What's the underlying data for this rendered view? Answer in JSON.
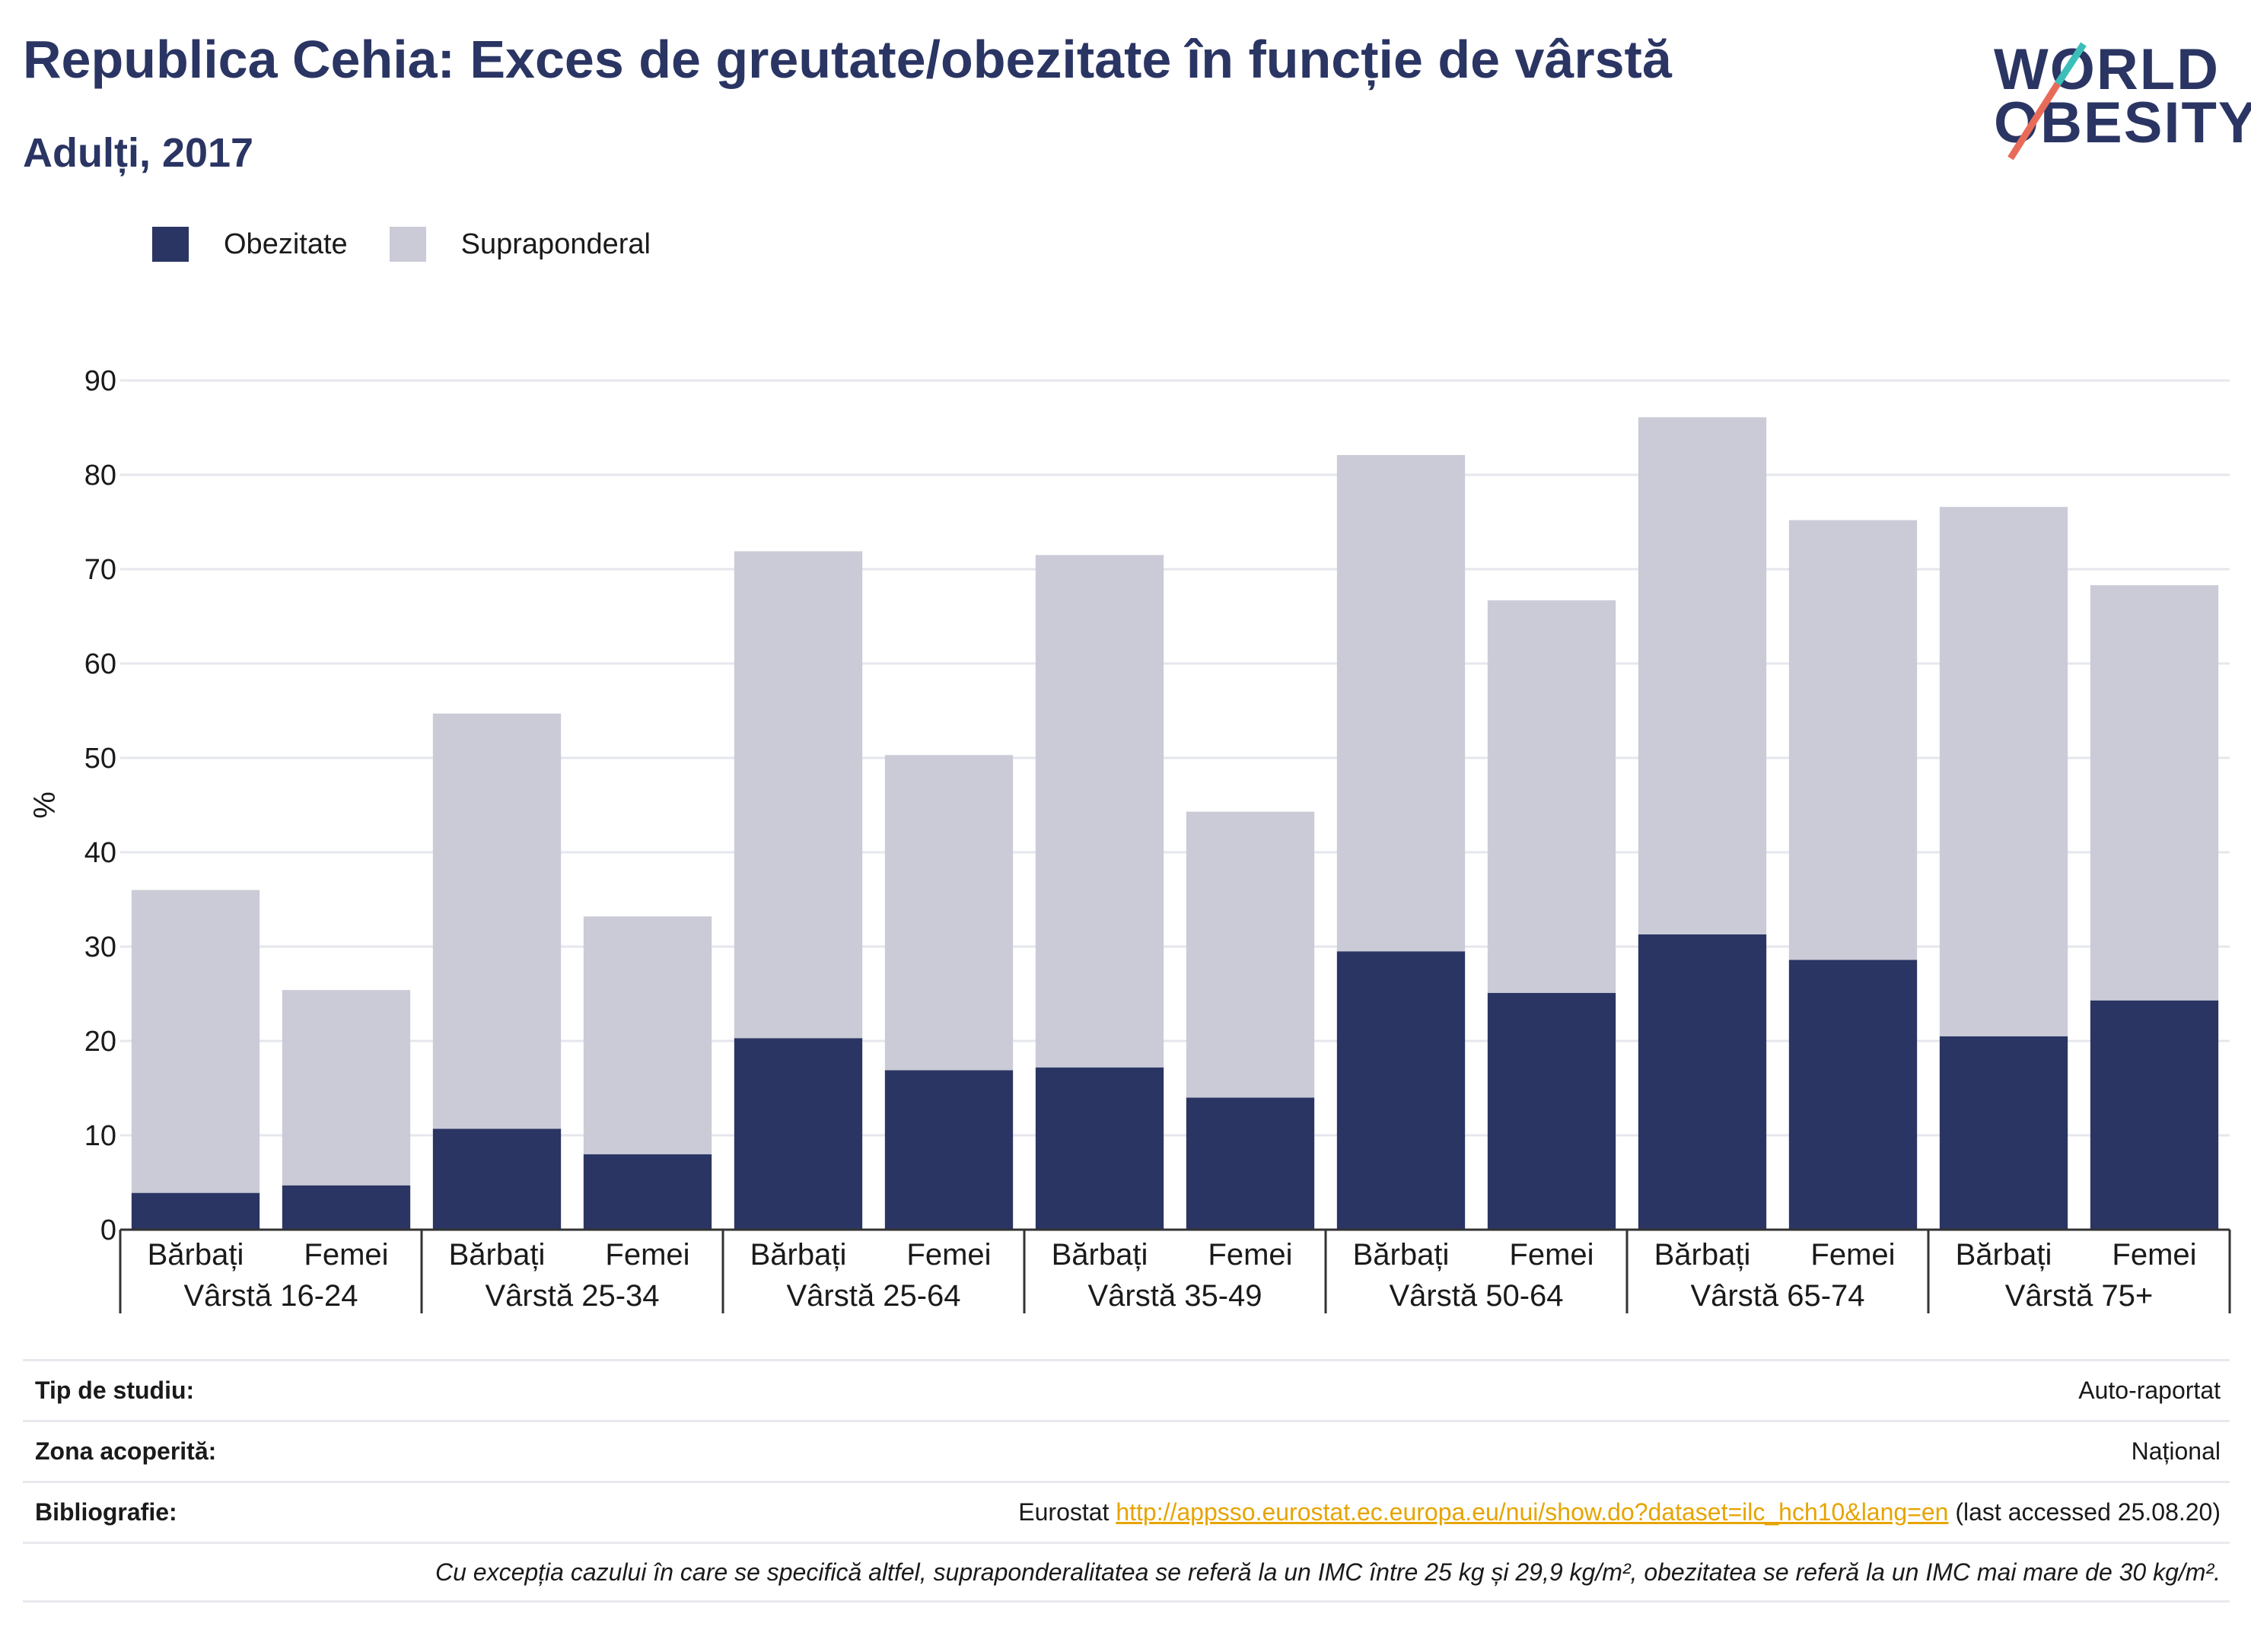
{
  "header": {
    "title": "Republica Cehia: Exces de greutate/obezitate în funcție de vârstă",
    "subtitle": "Adulți, 2017"
  },
  "logo": {
    "line1": "WORLD",
    "line2": "OBESITY",
    "colors": [
      "#2a3563",
      "#e86b5a",
      "#3bbfb8"
    ]
  },
  "legend": [
    {
      "label": "Obezitate",
      "color": "#2a3563"
    },
    {
      "label": "Supraponderal",
      "color": "#cacbd6"
    }
  ],
  "chart_data": {
    "type": "bar",
    "stacked": true,
    "ylabel": "%",
    "ylim": [
      0,
      90
    ],
    "yticks": [
      0,
      10,
      20,
      30,
      40,
      50,
      60,
      70,
      80,
      90
    ],
    "grid": true,
    "categories": [
      "Bărbați",
      "Femei",
      "Bărbați",
      "Femei",
      "Bărbați",
      "Femei",
      "Bărbați",
      "Femei",
      "Bărbați",
      "Femei",
      "Bărbați",
      "Femei",
      "Bărbați",
      "Femei"
    ],
    "groups": [
      "Vârstă 16-24",
      "Vârstă 25-34",
      "Vârstă 25-64",
      "Vârstă 35-49",
      "Vârstă 50-64",
      "Vârstă 65-74",
      "Vârstă 75+"
    ],
    "series": [
      {
        "name": "Obezitate",
        "color": "#2a3563",
        "values": [
          3.9,
          4.7,
          10.7,
          8.0,
          20.3,
          16.9,
          17.2,
          14.0,
          29.5,
          25.1,
          31.3,
          28.6,
          20.5,
          24.3
        ]
      },
      {
        "name": "Supraponderal",
        "color": "#cacbd6",
        "values": [
          32.1,
          20.7,
          44.0,
          25.2,
          51.6,
          33.4,
          54.3,
          30.3,
          52.6,
          41.6,
          54.8,
          46.6,
          56.1,
          44.0
        ]
      }
    ]
  },
  "info": {
    "study_type_label": "Tip de studiu:",
    "study_type_value": "Auto-raportat",
    "coverage_label": "Zona acoperită:",
    "coverage_value": "Național",
    "bibliography_label": "Bibliografie:",
    "bibliography_prefix": "Eurostat",
    "bibliography_link": "http://appsso.eurostat.ec.europa.eu/nui/show.do?dataset=ilc_hch10&lang=en",
    "bibliography_suffix": "(last accessed 25.08.20)",
    "note": "Cu excepția cazului în care se specifică altfel, supraponderalitatea se referă la un IMC între 25 kg și 29,9 kg/m², obezitatea se referă la un IMC mai mare de 30 kg/m²."
  }
}
